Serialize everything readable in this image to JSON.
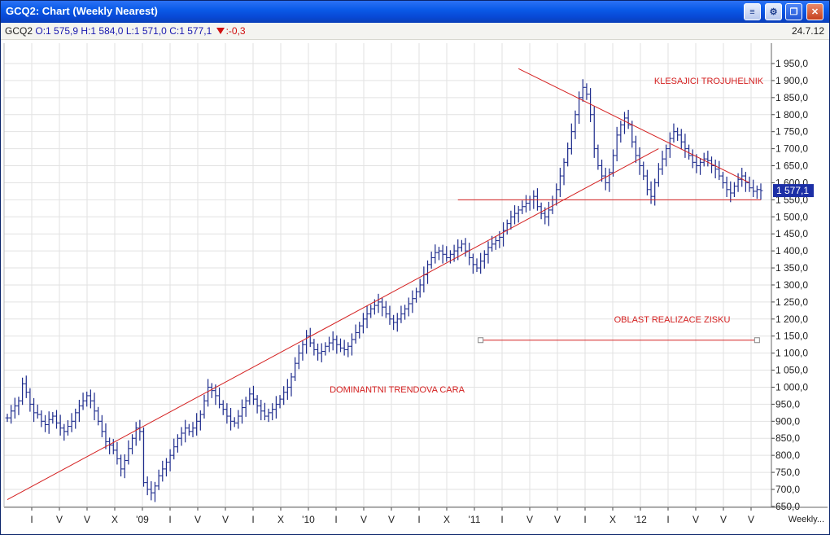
{
  "window": {
    "title": "GCQ2: Chart (Weekly Nearest)"
  },
  "quote": {
    "symbol": "GCQ2",
    "open": "O:1 575,9",
    "high": "H:1 584,0",
    "low": "L:1 571,0",
    "close": "C:1 577,1",
    "change": ":-0,3",
    "date": "24.7.12"
  },
  "colors": {
    "bars": "#1c2a8c",
    "lines": "#d42020",
    "grid": "#e2e2e2",
    "price_box": "#1c2fa6"
  },
  "icons": [
    "arrange-icon",
    "settings-icon",
    "restore-icon",
    "close-icon",
    "down-triangle-icon"
  ],
  "chart_data": {
    "type": "ohlc",
    "title": "",
    "y_axis": {
      "min": 650,
      "max": 1950,
      "step": 50,
      "side": "right",
      "tick_labels": [
        "650,0",
        "700,0",
        "750,0",
        "800,0",
        "850,0",
        "900,0",
        "950,0",
        "1 000,0",
        "1 050,0",
        "1 100,0",
        "1 150,0",
        "1 200,0",
        "1 250,0",
        "1 300,0",
        "1 350,0",
        "1 400,0",
        "1 450,0",
        "1 500,0",
        "1 550,0",
        "1 600,0",
        "1 650,0",
        "1 700,0",
        "1 750,0",
        "1 800,0",
        "1 850,0",
        "1 900,0",
        "1 950,0"
      ]
    },
    "x_axis": {
      "tick_labels": [
        "I",
        "V",
        "V",
        "X",
        "'09",
        "I",
        "V",
        "V",
        "I",
        "X",
        "'10",
        "I",
        "V",
        "V",
        "I",
        "X",
        "'11",
        "I",
        "V",
        "V",
        "I",
        "X",
        "'12",
        "I",
        "V",
        "V",
        "V"
      ],
      "period_label": "Weekly..."
    },
    "last_price_label": "1 577,1",
    "series": [
      {
        "close": [
          910,
          930,
          945,
          960,
          1010,
          985,
          950,
          925,
          920,
          900,
          890,
          905,
          915,
          895,
          880,
          870,
          885,
          900,
          925,
          945,
          960,
          975,
          960,
          930,
          900,
          870,
          840,
          830,
          815,
          790,
          760,
          785,
          820,
          850,
          880,
          870,
          720,
          700,
          690,
          710,
          740,
          760,
          780,
          800,
          825,
          850,
          865,
          880,
          870,
          880,
          900,
          920,
          960,
          1000,
          990,
          975,
          950,
          935,
          915,
          900,
          895,
          915,
          940,
          960,
          980,
          965,
          945,
          930,
          915,
          925,
          935,
          950,
          965,
          985,
          1000,
          1030,
          1070,
          1100,
          1125,
          1150,
          1130,
          1110,
          1100,
          1105,
          1120,
          1130,
          1140,
          1125,
          1115,
          1110,
          1120,
          1140,
          1160,
          1180,
          1200,
          1215,
          1230,
          1240,
          1250,
          1235,
          1215,
          1200,
          1190,
          1200,
          1215,
          1230,
          1245,
          1260,
          1280,
          1300,
          1330,
          1360,
          1380,
          1395,
          1400,
          1390,
          1380,
          1390,
          1400,
          1410,
          1420,
          1400,
          1380,
          1360,
          1350,
          1370,
          1390,
          1410,
          1420,
          1430,
          1440,
          1460,
          1480,
          1500,
          1510,
          1520,
          1530,
          1540,
          1550,
          1560,
          1530,
          1510,
          1500,
          1520,
          1550,
          1580,
          1620,
          1660,
          1700,
          1750,
          1800,
          1850,
          1880,
          1860,
          1800,
          1700,
          1650,
          1620,
          1600,
          1630,
          1680,
          1740,
          1770,
          1790,
          1770,
          1720,
          1680,
          1650,
          1620,
          1580,
          1560,
          1600,
          1640,
          1670,
          1700,
          1730,
          1750,
          1740,
          1720,
          1700,
          1680,
          1660,
          1650,
          1660,
          1670,
          1665,
          1650,
          1640,
          1620,
          1600,
          1580,
          1570,
          1590,
          1610,
          1620,
          1600,
          1585,
          1575,
          1580,
          1577
        ]
      }
    ],
    "annotations": [
      {
        "text": "KLESAJICI TROJUHELNIK",
        "color": "#d42020"
      },
      {
        "text": "OBLAST REALIZACE ZISKU",
        "color": "#d42020"
      },
      {
        "text": "DOMINANTNI TRENDOVA CARA",
        "color": "#d42020"
      }
    ],
    "trendlines": [
      {
        "name": "dominant-trendline",
        "from": [
          0,
          670
        ],
        "to": [
          172,
          1700
        ]
      },
      {
        "name": "triangle-upper-line",
        "from": [
          135,
          1935
        ],
        "to": [
          196,
          1600
        ]
      },
      {
        "name": "support-line",
        "from": [
          119,
          1550
        ],
        "to": [
          199,
          1550
        ]
      },
      {
        "name": "profit-zone-line",
        "from": [
          125,
          1138
        ],
        "to": [
          198,
          1138
        ]
      }
    ]
  }
}
